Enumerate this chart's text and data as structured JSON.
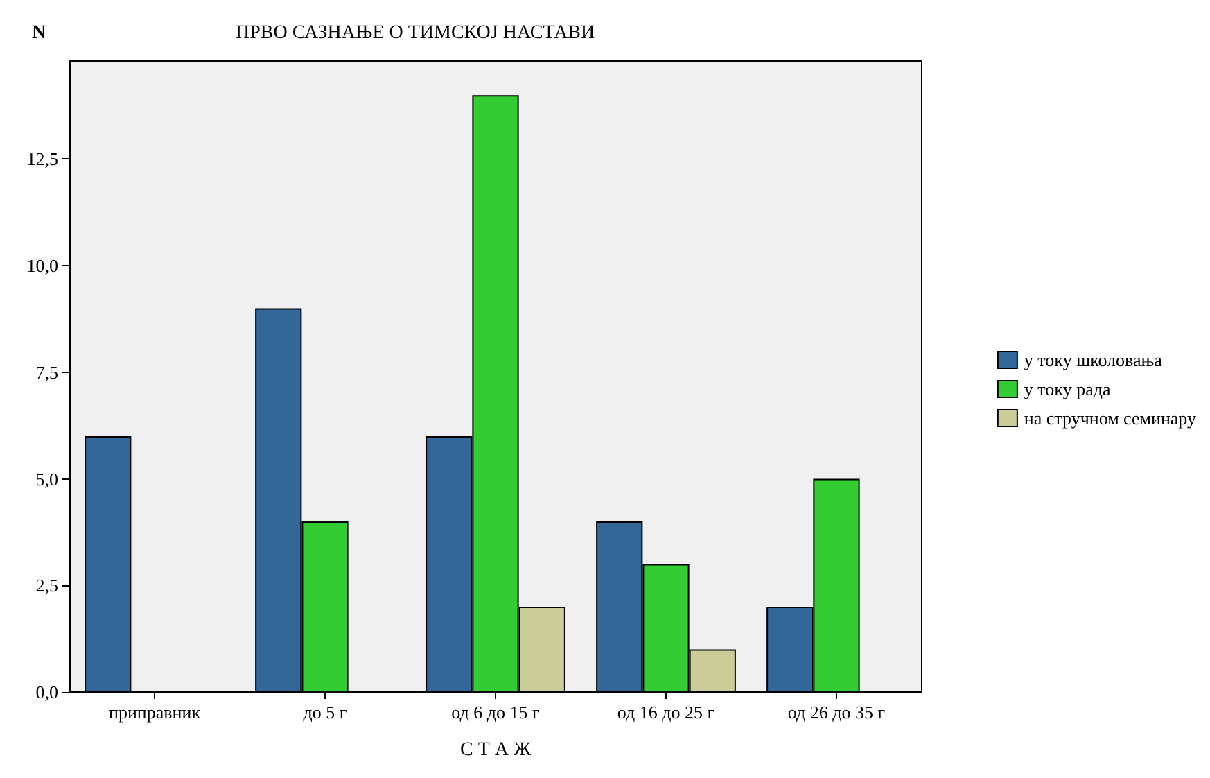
{
  "chart_data": {
    "type": "bar",
    "title": "ПРВО САЗНАЊЕ О ТИМСКОЈ НАСТАВИ",
    "xlabel": "С Т А Ж",
    "ylabel": "N",
    "categories": [
      "приправник",
      "до 5 г",
      "од 6 до 15 г",
      "од 16 до 25 г",
      "од 26 до 35 г"
    ],
    "series": [
      {
        "name": "у току школовања",
        "color": "#336699",
        "values": [
          6,
          9,
          6,
          4,
          2
        ]
      },
      {
        "name": "у току рада",
        "color": "#33cc33",
        "values": [
          null,
          4,
          14,
          3,
          5
        ]
      },
      {
        "name": "на стручном семинару",
        "color": "#cccc99",
        "values": [
          null,
          null,
          2,
          1,
          null
        ]
      }
    ],
    "ylim": [
      0,
      14.8
    ],
    "yticks": [
      {
        "value": 0,
        "label": "0,0"
      },
      {
        "value": 2.5,
        "label": "2,5"
      },
      {
        "value": 5,
        "label": "5,0"
      },
      {
        "value": 7.5,
        "label": "7,5"
      },
      {
        "value": 10,
        "label": "10,0"
      },
      {
        "value": 12.5,
        "label": "12,5"
      }
    ],
    "grid": false,
    "legend": "right"
  }
}
